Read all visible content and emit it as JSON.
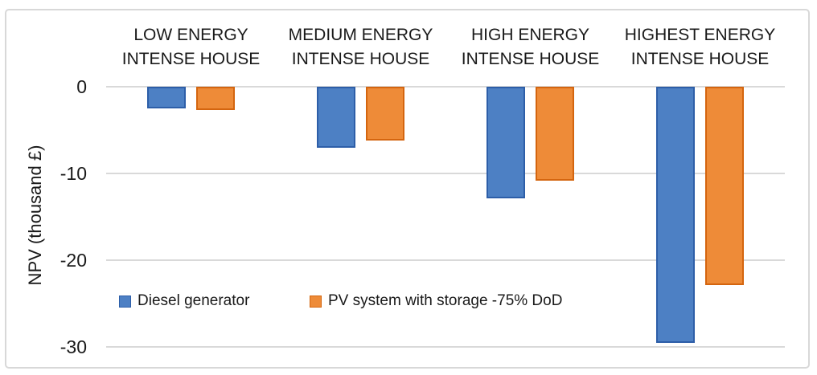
{
  "chart_data": {
    "type": "bar",
    "title": "",
    "ylabel": "NPV (thousand £)",
    "xlabel": "",
    "categories": [
      "LOW ENERGY\nINTENSE HOUSE",
      "MEDIUM ENERGY\nINTENSE HOUSE",
      "HIGH ENERGY\nINTENSE HOUSE",
      "HIGHEST ENERGY\nINTENSE HOUSE"
    ],
    "series": [
      {
        "name": "Diesel generator",
        "color": "#4d80c4",
        "border_color": "#2d5ea8",
        "values": [
          -2.5,
          -7.0,
          -12.9,
          -29.5
        ]
      },
      {
        "name": "PV system with storage -75% DoD",
        "color": "#ee8b38",
        "border_color": "#d4650f",
        "values": [
          -2.7,
          -6.2,
          -10.8,
          -22.9
        ]
      }
    ],
    "yticks": [
      0,
      -10,
      -20,
      -30
    ],
    "ylim": [
      -32,
      0
    ],
    "grid": true,
    "gridline_color": "#d9d9d9",
    "legend_position": "inside-bottom-left"
  }
}
